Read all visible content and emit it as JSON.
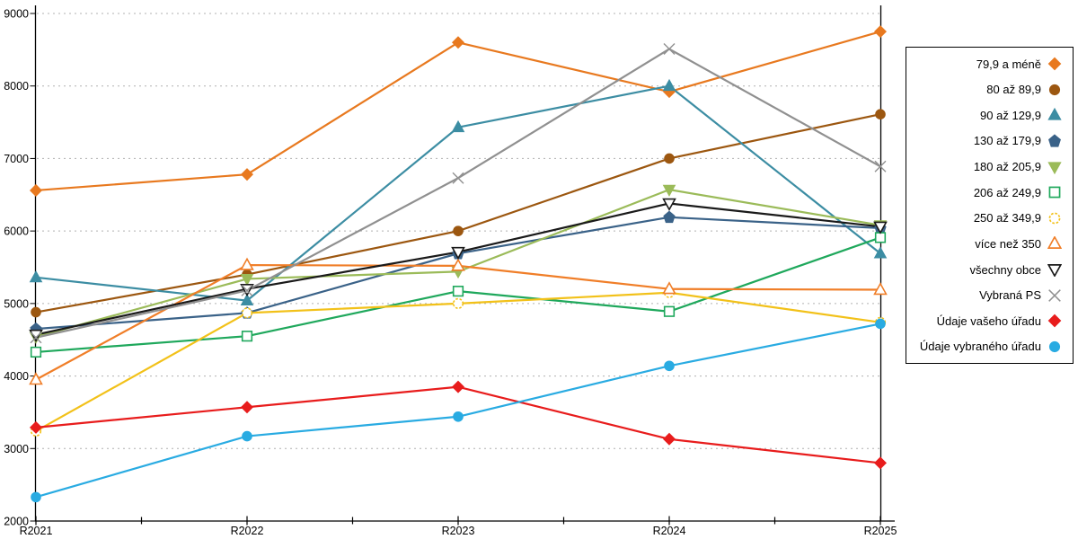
{
  "chart_data": {
    "type": "line",
    "title": "",
    "xlabel": "",
    "ylabel": "",
    "categories": [
      "R2021",
      "R2022",
      "R2023",
      "R2024",
      "R2025"
    ],
    "ylim": [
      2000,
      9000
    ],
    "ytick_step": 1000,
    "grid": "horizontal-dotted",
    "gridline_color": "#B0B0B0",
    "axis_color": "#000000",
    "legend_position": "right",
    "series": [
      {
        "name": "79,9 a méně",
        "color": "#E8791F",
        "marker": "diamond",
        "filled": true,
        "dashed": false,
        "values": [
          6560,
          6780,
          8600,
          7920,
          8750
        ]
      },
      {
        "name": "80 až 89,9",
        "color": "#9C5710",
        "marker": "circle",
        "filled": true,
        "dashed": false,
        "values": [
          4880,
          5400,
          6000,
          7000,
          7610
        ]
      },
      {
        "name": "90 až 129,9",
        "color": "#3C8DA3",
        "marker": "triangle-up",
        "filled": true,
        "dashed": false,
        "values": [
          5360,
          5040,
          7430,
          8000,
          5690
        ]
      },
      {
        "name": "130 až 179,9",
        "color": "#3A6288",
        "marker": "pentagon",
        "filled": true,
        "dashed": false,
        "values": [
          4650,
          4870,
          5690,
          6190,
          6040
        ]
      },
      {
        "name": "180 až 205,9",
        "color": "#9BBB59",
        "marker": "triangle-down",
        "filled": true,
        "dashed": false,
        "values": [
          4540,
          5340,
          5440,
          6570,
          6080
        ]
      },
      {
        "name": "206 až 249,9",
        "color": "#1FA85C",
        "marker": "square",
        "filled": false,
        "dashed": false,
        "values": [
          4330,
          4550,
          5170,
          4890,
          5910
        ]
      },
      {
        "name": "250 až 349,9",
        "color": "#F2C119",
        "marker": "circle",
        "filled": false,
        "dashed": true,
        "values": [
          3240,
          4870,
          5000,
          5150,
          4740
        ]
      },
      {
        "name": "více než 350",
        "color": "#F07E28",
        "marker": "triangle-up",
        "filled": false,
        "dashed": false,
        "values": [
          3950,
          5530,
          5520,
          5200,
          5190
        ]
      },
      {
        "name": "všechny obce",
        "color": "#1A1A1A",
        "marker": "triangle-down",
        "filled": false,
        "dashed": false,
        "values": [
          4570,
          5200,
          5710,
          6380,
          6060
        ]
      },
      {
        "name": "Vybraná PS",
        "color": "#909090",
        "marker": "x",
        "filled": false,
        "dashed": false,
        "values": [
          4530,
          5180,
          6730,
          8510,
          6890
        ]
      },
      {
        "name": "Údaje vašeho úřadu",
        "color": "#E81C1C",
        "marker": "diamond",
        "filled": true,
        "dashed": false,
        "values": [
          3290,
          3570,
          3850,
          3130,
          2800
        ]
      },
      {
        "name": "Údaje vybraného úřadu",
        "color": "#29ABE2",
        "marker": "circle",
        "filled": true,
        "dashed": false,
        "values": [
          2330,
          3170,
          3440,
          4140,
          4720
        ]
      }
    ]
  }
}
